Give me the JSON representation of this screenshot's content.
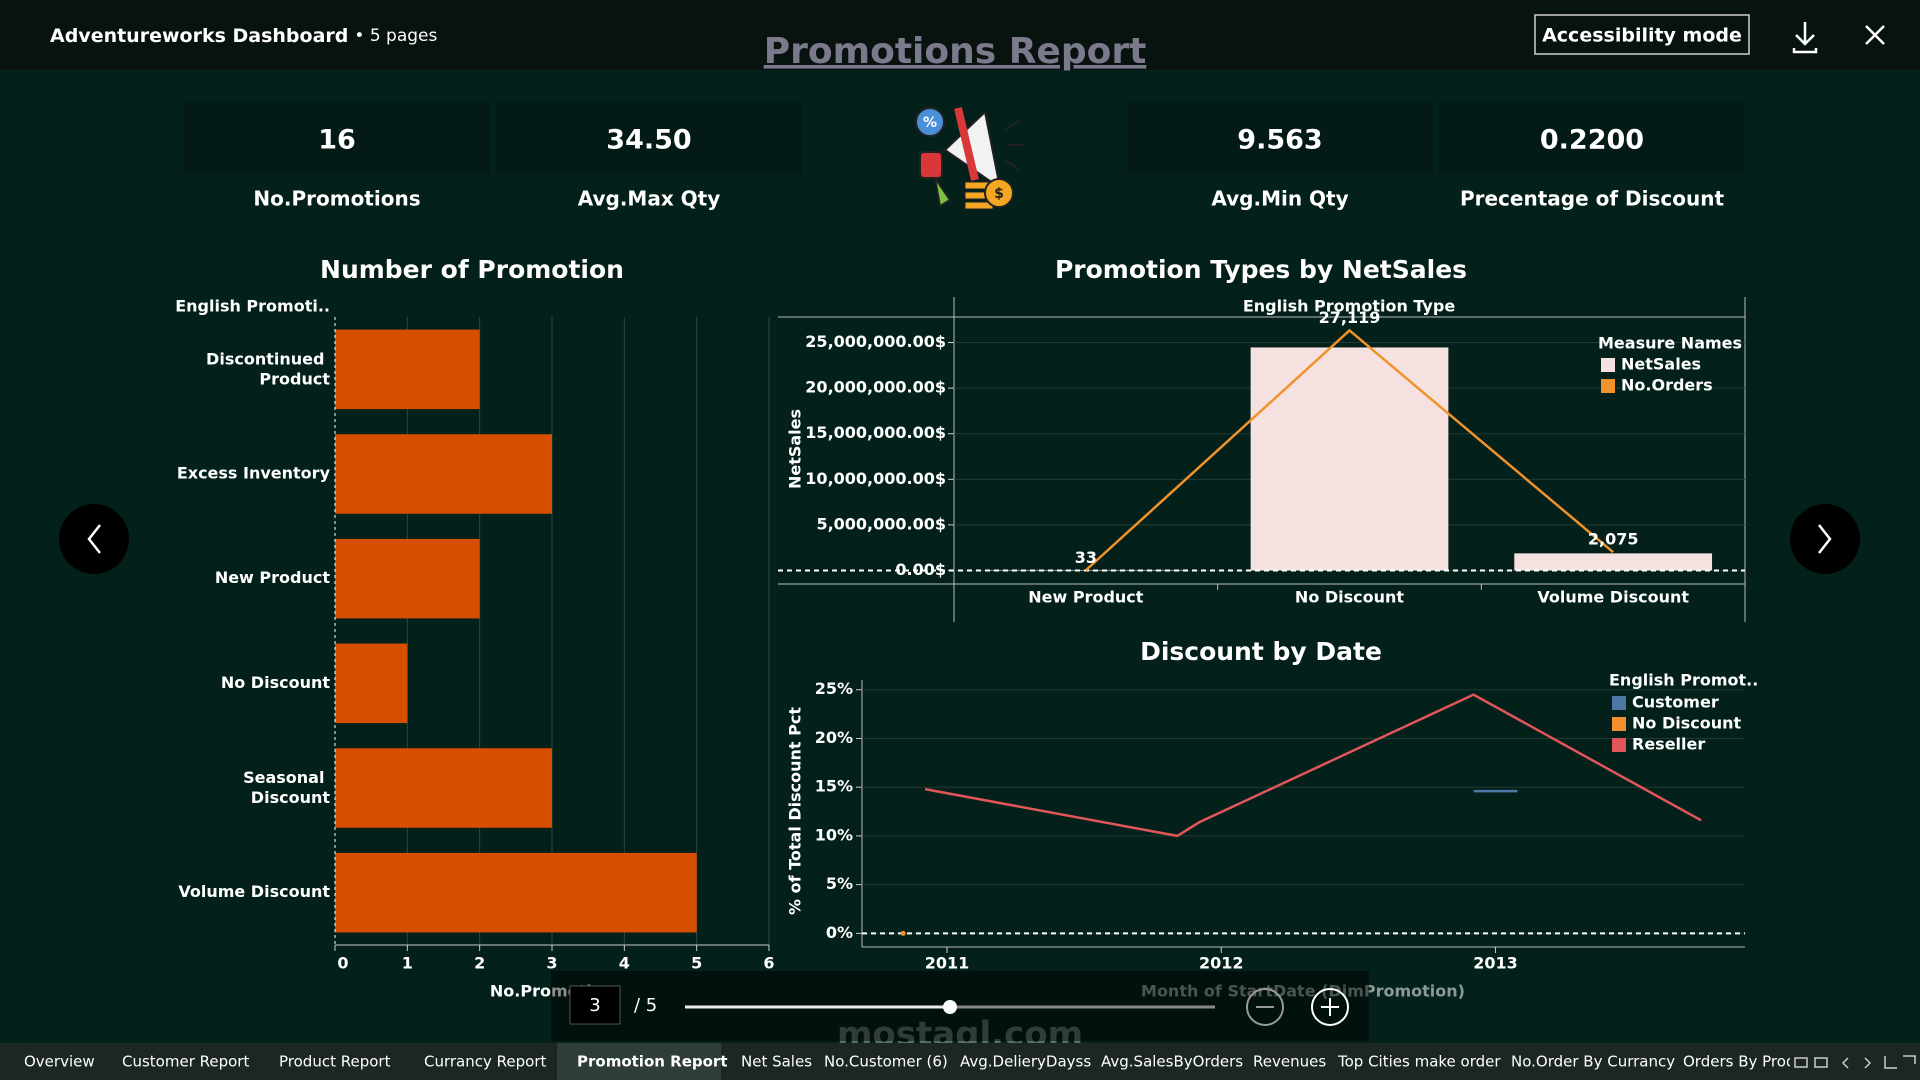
{
  "header": {
    "title": "Adventureworks Dashboard",
    "pages": "• 5 pages",
    "button": "Accessibility mode"
  },
  "report_title": "Promotions Report",
  "kpis": [
    {
      "value": "16",
      "label": "No.Promotions"
    },
    {
      "value": "34.50",
      "label": "Avg.Max Qty"
    },
    {
      "value": "9.563",
      "label": "Avg.Min Qty"
    },
    {
      "value": "0.2200",
      "label": "Precentage of Discount"
    }
  ],
  "chart_data": [
    {
      "type": "bar",
      "orientation": "horizontal",
      "title": "Number of Promotion",
      "category_header": "English Promoti..",
      "categories": [
        "Discontinued Product",
        "Excess Inventory",
        "New Product",
        "No Discount",
        "Seasonal Discount",
        "Volume Discount"
      ],
      "values": [
        2,
        3,
        2,
        1,
        3,
        5
      ],
      "color": "#d64f00",
      "x_label": "No.Promotion",
      "xlim": [
        0,
        6
      ],
      "xticks": [
        0,
        1,
        2,
        3,
        4,
        5,
        6
      ],
      "grid": true
    },
    {
      "type": "combo",
      "title": "Promotion Types by NetSales",
      "category_header": "English Promotion Type",
      "categories": [
        "New Product",
        "No Discount",
        "Volume Discount"
      ],
      "y_label": "NetSales",
      "ylim": [
        -1480000,
        27800000
      ],
      "yticks": [
        {
          "value": 0,
          "label": "0.00$"
        },
        {
          "value": 5000000,
          "label": "5,000,000.00$"
        },
        {
          "value": 10000000,
          "label": "10,000,000.00$"
        },
        {
          "value": 15000000,
          "label": "15,000,000.00$"
        },
        {
          "value": 20000000,
          "label": "20,000,000.00$"
        },
        {
          "value": 25000000,
          "label": "25,000,000.00$"
        }
      ],
      "y2lim": [
        -1520,
        28640
      ],
      "legend_title": "Measure Names",
      "series": [
        {
          "name": "NetSales",
          "type": "bar",
          "color": "#f5e1df",
          "values": [
            60000,
            24460000,
            1880000
          ]
        },
        {
          "name": "No.Orders",
          "type": "line",
          "axis": "y2",
          "color": "#f0932b",
          "values": [
            33,
            27119,
            2075
          ],
          "value_labels": [
            "33",
            "27,119",
            "2,075"
          ]
        }
      ]
    },
    {
      "type": "line",
      "title": "Discount by Date",
      "x_label": "Month of StartDate (DimPromotion)",
      "y_label": "% of Total Discount Pct",
      "xlim": [
        2010.69,
        2013.91
      ],
      "xticks": [
        2011,
        2012,
        2013
      ],
      "ylim": [
        -1.4,
        26
      ],
      "yticks": [
        {
          "value": 0,
          "label": "0%"
        },
        {
          "value": 5,
          "label": "5%"
        },
        {
          "value": 10,
          "label": "10%"
        },
        {
          "value": 15,
          "label": "15%"
        },
        {
          "value": 20,
          "label": "20%"
        },
        {
          "value": 25,
          "label": "25%"
        }
      ],
      "legend_title": "English Promot..",
      "grid": true,
      "series": [
        {
          "name": "Customer",
          "color": "#4e79a7",
          "x": [
            2012.92,
            2013.08
          ],
          "values": [
            14.6,
            14.6
          ]
        },
        {
          "name": "No Discount",
          "color": "#f28e2b",
          "x": [
            2010.84
          ],
          "values": [
            0
          ]
        },
        {
          "name": "Reseller",
          "color": "#e15759",
          "x": [
            2010.92,
            2011.84,
            2011.92,
            2012.92,
            2013.75
          ],
          "values": [
            14.8,
            10,
            11.4,
            24.5,
            11.6
          ]
        }
      ]
    }
  ],
  "pager": {
    "current": "3",
    "total": "/ 5"
  },
  "watermark": "mostaql.com",
  "tabs": [
    "Overview",
    "Customer Report",
    "Product Report",
    "Currancy Report",
    "Promotion Report",
    "Net Sales",
    "No.Customer (6)",
    "Avg.DelieryDayss",
    "Avg.SalesByOrders",
    "Revenues",
    "Top Cities make order",
    "No.Order By Currancy",
    "Orders By Prod"
  ],
  "active_tab": 4
}
